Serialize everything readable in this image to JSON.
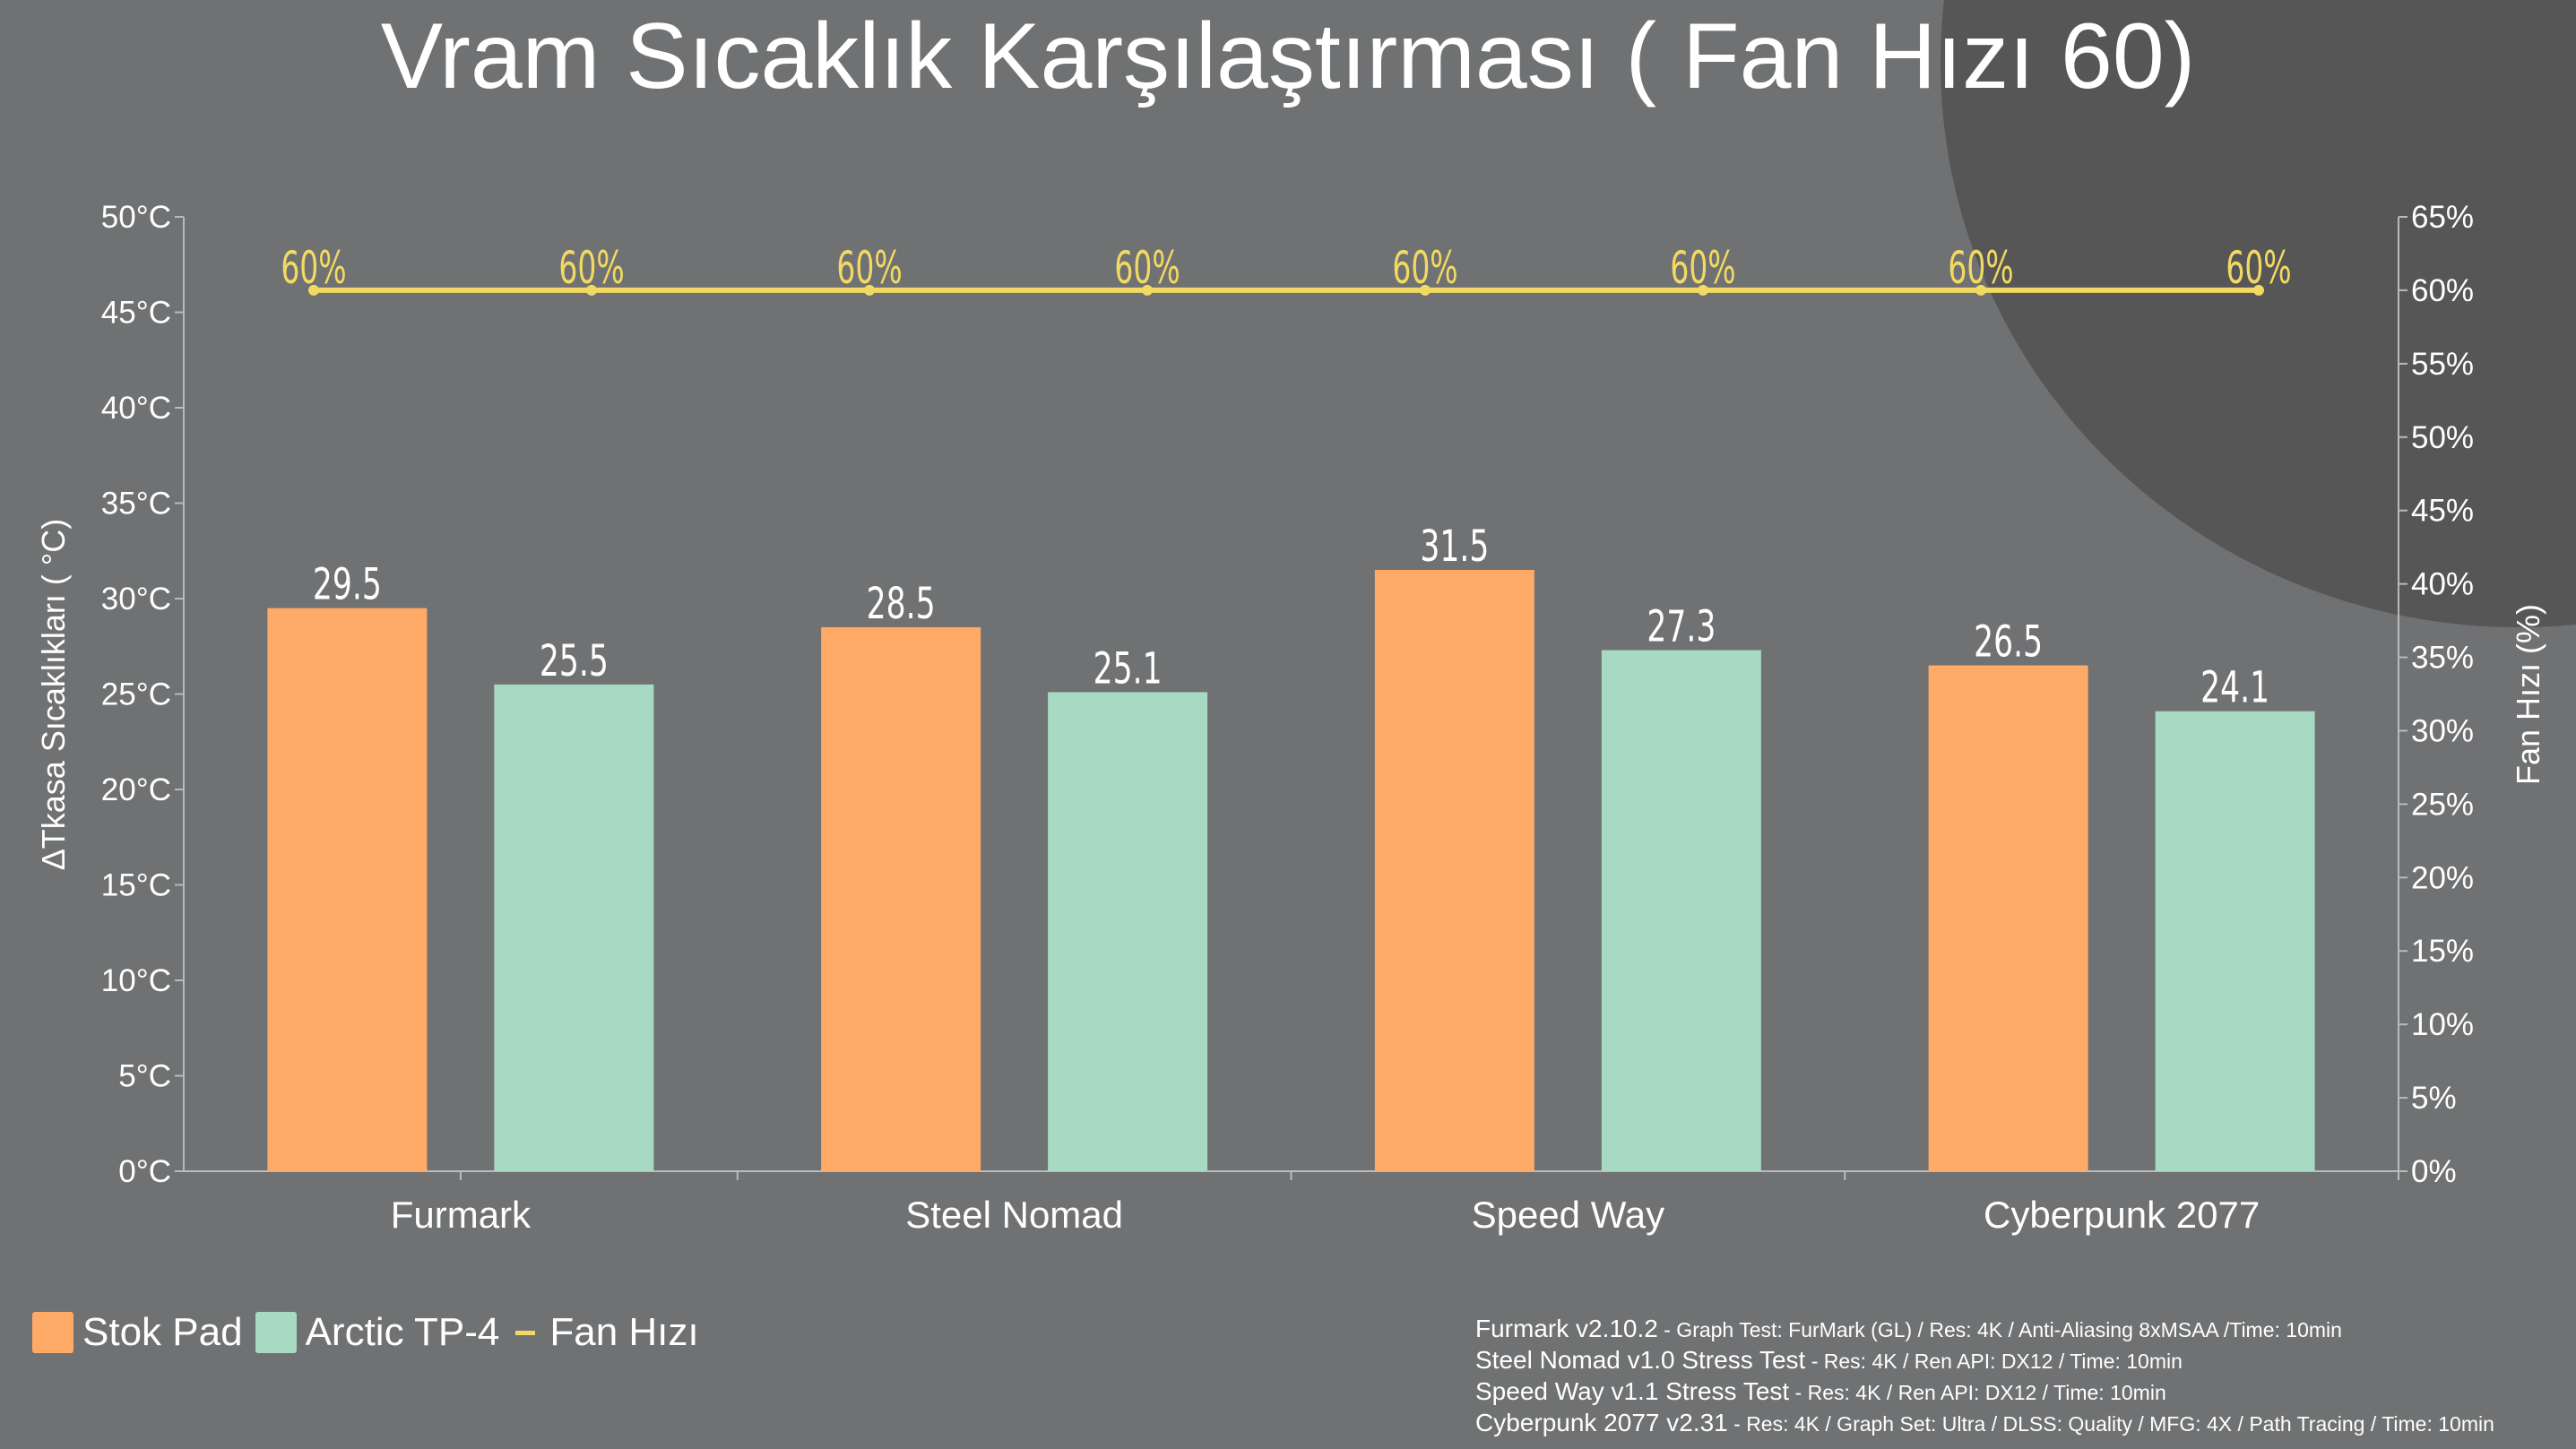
{
  "chart_data": {
    "type": "bar",
    "title": "Vram Sıcaklık Karşılaştırması ( Fan Hızı 60)",
    "ylabel": "ΔTkasa Sıcaklıkları ( °C)",
    "y2label": "Fan Hızı (%)",
    "ylim": [
      0,
      50
    ],
    "y2lim": [
      0,
      65
    ],
    "yticks": [
      "0°C",
      "5°C",
      "10°C",
      "15°C",
      "20°C",
      "25°C",
      "30°C",
      "35°C",
      "40°C",
      "45°C",
      "50°C"
    ],
    "y2ticks": [
      "0%",
      "5%",
      "10%",
      "15%",
      "20%",
      "25%",
      "30%",
      "35%",
      "40%",
      "45%",
      "50%",
      "55%",
      "60%",
      "65%"
    ],
    "categories": [
      "Furmark",
      "Steel Nomad",
      "Speed Way",
      "Cyberpunk 2077"
    ],
    "series": [
      {
        "name": "Stok Pad",
        "type": "bar",
        "color": "#ffaa66",
        "values": [
          29.5,
          28.5,
          31.5,
          26.5
        ],
        "labels": [
          "29.5",
          "28.5",
          "31.5",
          "26.5"
        ]
      },
      {
        "name": "Arctic TP-4",
        "type": "bar",
        "color": "#a8d9c3",
        "values": [
          25.5,
          25.1,
          27.3,
          24.1
        ],
        "labels": [
          "25.5",
          "25.1",
          "27.3",
          "24.1"
        ]
      }
    ],
    "line_series": {
      "name": "Fan Hızı",
      "color": "#f2da62",
      "axis": "right",
      "values": [
        60,
        60,
        60,
        60,
        60,
        60,
        60,
        60
      ],
      "labels": [
        "60%",
        "60%",
        "60%",
        "60%",
        "60%",
        "60%",
        "60%",
        "60%"
      ]
    },
    "legend_position": "bottom-left",
    "grid": false
  },
  "notes": [
    {
      "name": "Furmark v2.10.2",
      "detail": " - Graph Test: FurMark (GL) / Res: 4K / Anti-Aliasing 8xMSAA /Time: 10min"
    },
    {
      "name": "Steel Nomad v1.0 Stress Test",
      "detail": " - Res: 4K / Ren API: DX12 / Time: 10min"
    },
    {
      "name": "Speed Way v1.1 Stress Test",
      "detail": " - Res: 4K / Ren API: DX12 / Time: 10min"
    },
    {
      "name": "Cyberpunk 2077 v2.31",
      "detail": " - Res: 4K / Graph Set: Ultra / DLSS: Quality / MFG: 4X / Path Tracing / Time: 10min"
    }
  ]
}
